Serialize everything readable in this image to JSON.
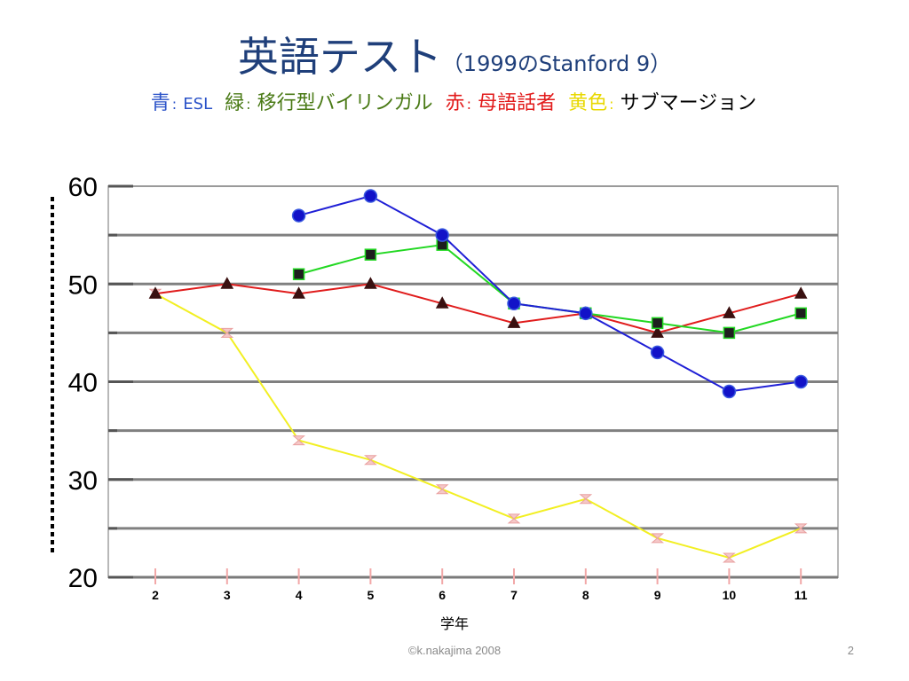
{
  "title": {
    "main": "英語テスト",
    "sub": "（1999のStanford 9）"
  },
  "legend_line": [
    {
      "label": "青",
      "sep": ": ",
      "desc": "ESL",
      "color": "#2a52c8"
    },
    {
      "label": "緑",
      "sep": ": ",
      "desc": "移行型バイリンガル",
      "color": "#4a7a16"
    },
    {
      "label": "赤",
      "sep": ": ",
      "desc": "母語話者",
      "color": "#e21b1b"
    },
    {
      "label": "黄色",
      "sep": ": ",
      "desc": "サブマージョン",
      "color": "#e8d800",
      "desc_color": "#000000"
    }
  ],
  "chart_data": {
    "type": "line",
    "xlabel": "学年",
    "ylabel": "",
    "title": "",
    "x": [
      2,
      3,
      4,
      5,
      6,
      7,
      8,
      9,
      10,
      11
    ],
    "ylim": [
      20,
      60
    ],
    "yticks": [
      20,
      30,
      40,
      50,
      60
    ],
    "grid": true,
    "series": [
      {
        "color": "#1f1fd6",
        "marker": "circle",
        "values": [
          null,
          null,
          57,
          59,
          55,
          48,
          47,
          43,
          39,
          40
        ]
      },
      {
        "color": "#22d822",
        "marker": "square",
        "values": [
          null,
          null,
          51,
          53,
          54,
          48,
          47,
          46,
          45,
          47
        ]
      },
      {
        "color": "#e01c1c",
        "marker": "triangle",
        "values": [
          49,
          50,
          49,
          50,
          48,
          46,
          47,
          45,
          47,
          49
        ]
      },
      {
        "color": "#f2ef22",
        "marker": "hourglass",
        "values": [
          49,
          45,
          34,
          32,
          29,
          26,
          28,
          24,
          22,
          25
        ]
      }
    ]
  },
  "footer": {
    "copyright": "©k.nakajima 2008",
    "page": "2"
  }
}
